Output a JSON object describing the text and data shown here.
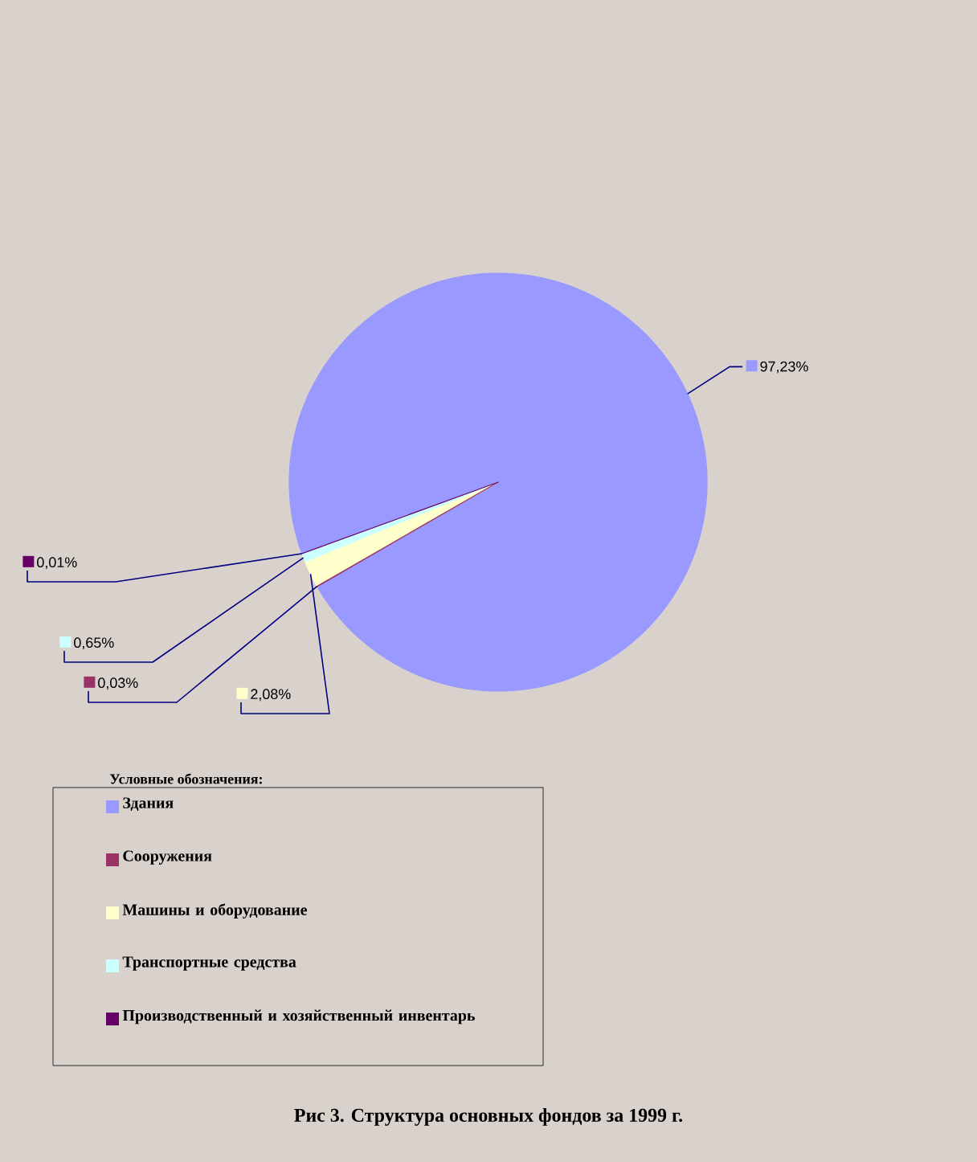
{
  "chart_data": {
    "type": "pie",
    "title": "Рис 3. Структура основных фондов за 1999 г.",
    "legend_title": "Условные обозначения:",
    "categories": [
      "Здания",
      "Сооружения",
      "Машины и оборудование",
      "Транспортные средства",
      "Производственный и хозяйственный инвентарь"
    ],
    "values": [
      97.23,
      0.03,
      2.08,
      0.65,
      0.01
    ],
    "value_labels": [
      "97,23%",
      "0,03%",
      "2,08%",
      "0,65%",
      "0,01%"
    ],
    "colors": [
      "#9999ff",
      "#993366",
      "#ffffcc",
      "#ccffff",
      "#660066"
    ],
    "legend": "bottom"
  }
}
